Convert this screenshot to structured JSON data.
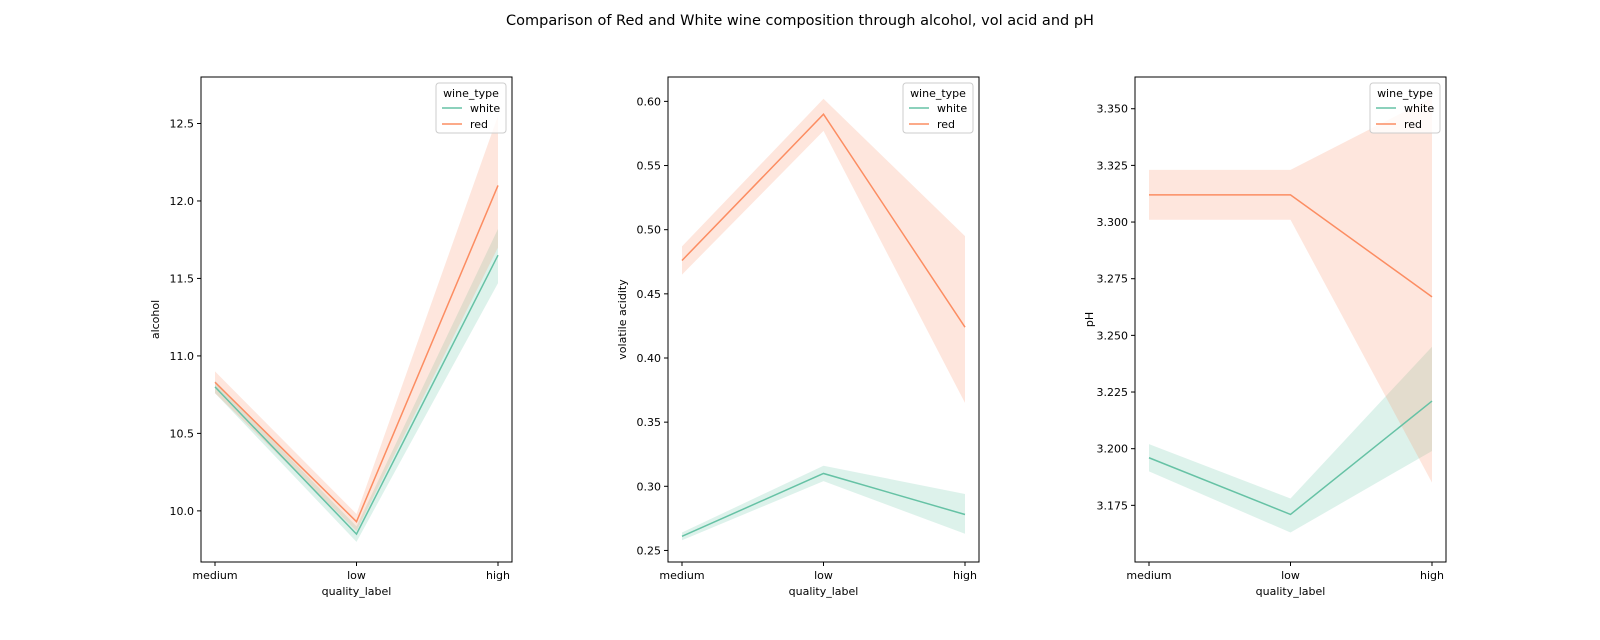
{
  "figure": {
    "title": "Comparison of Red and White wine composition through alcohol, vol acid and pH"
  },
  "colors": {
    "white": "#66c2a5",
    "red": "#fc8d62"
  },
  "chart_data": [
    {
      "type": "line",
      "title": "",
      "xlabel": "quality_label",
      "ylabel": "alcohol",
      "categories": [
        "medium",
        "low",
        "high"
      ],
      "ylim": [
        9.67,
        12.8
      ],
      "yticks": [
        "10.0",
        "10.5",
        "11.0",
        "11.5",
        "12.0",
        "12.5"
      ],
      "grid": false,
      "legend": {
        "title": "wine_type",
        "position": "top-right",
        "entries": [
          "white",
          "red"
        ]
      },
      "series": [
        {
          "name": "white",
          "values": [
            10.8,
            9.85,
            11.65
          ],
          "ci_low": [
            10.76,
            9.8,
            11.47
          ],
          "ci_high": [
            10.84,
            9.9,
            11.82
          ]
        },
        {
          "name": "red",
          "values": [
            10.83,
            9.93,
            12.1
          ],
          "ci_low": [
            10.76,
            9.87,
            11.7
          ],
          "ci_high": [
            10.9,
            9.98,
            12.55
          ]
        }
      ]
    },
    {
      "type": "line",
      "title": "",
      "xlabel": "quality_label",
      "ylabel": "volatile acidity",
      "categories": [
        "medium",
        "low",
        "high"
      ],
      "ylim": [
        0.241,
        0.619
      ],
      "yticks": [
        "0.25",
        "0.30",
        "0.35",
        "0.40",
        "0.45",
        "0.50",
        "0.55",
        "0.60"
      ],
      "grid": false,
      "legend": {
        "title": "wine_type",
        "position": "top-right",
        "entries": [
          "white",
          "red"
        ]
      },
      "series": [
        {
          "name": "white",
          "values": [
            0.261,
            0.31,
            0.278
          ],
          "ci_low": [
            0.258,
            0.304,
            0.263
          ],
          "ci_high": [
            0.264,
            0.316,
            0.294
          ]
        },
        {
          "name": "red",
          "values": [
            0.476,
            0.59,
            0.424
          ],
          "ci_low": [
            0.465,
            0.577,
            0.365
          ],
          "ci_high": [
            0.487,
            0.602,
            0.495
          ]
        }
      ]
    },
    {
      "type": "line",
      "title": "",
      "xlabel": "quality_label",
      "ylabel": "pH",
      "categories": [
        "medium",
        "low",
        "high"
      ],
      "ylim": [
        3.15,
        3.364
      ],
      "yticks": [
        "3.175",
        "3.200",
        "3.225",
        "3.250",
        "3.275",
        "3.300",
        "3.325",
        "3.350"
      ],
      "grid": false,
      "legend": {
        "title": "wine_type",
        "position": "top-right",
        "entries": [
          "white",
          "red"
        ]
      },
      "series": [
        {
          "name": "white",
          "values": [
            3.196,
            3.171,
            3.221
          ],
          "ci_low": [
            3.19,
            3.163,
            3.199
          ],
          "ci_high": [
            3.202,
            3.178,
            3.245
          ]
        },
        {
          "name": "red",
          "values": [
            3.312,
            3.312,
            3.267
          ],
          "ci_low": [
            3.301,
            3.301,
            3.185
          ],
          "ci_high": [
            3.323,
            3.323,
            3.355
          ]
        }
      ]
    }
  ]
}
